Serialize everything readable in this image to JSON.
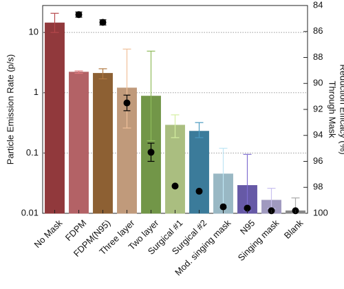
{
  "chart_data": {
    "type": "bar",
    "categories": [
      "No Mask",
      "FDPM",
      "FDPM(N95)",
      "Three layer",
      "Two layer",
      "Surgical #1",
      "Surgical #2",
      "Mod. singing mask",
      "N95",
      "Singing mask",
      "Blank"
    ],
    "ylabel": "Particle Emission Rate (p/s)",
    "y2label": [
      "Through Mask",
      "Reduction Efficacy (%)"
    ],
    "log_y": true,
    "grid": true,
    "ylim": [
      0.01,
      28
    ],
    "yticks": [
      0.01,
      0.1,
      1,
      10
    ],
    "y2lim": [
      84,
      100
    ],
    "y2ticks": [
      84,
      86,
      88,
      90,
      92,
      94,
      96,
      98,
      100
    ],
    "series": [
      {
        "type": "bar",
        "colors": [
          "#b5474b",
          "#e07a7f",
          "#b07840",
          "#f0c09a",
          "#8fbb5a",
          "#d4eea0",
          "#4a9ac0",
          "#bfe6f5",
          "#7f6fd0",
          "#c8c0ef",
          "#a9a9a9"
        ],
        "values": [
          14.4,
          2.2,
          2.1,
          1.2,
          0.88,
          0.29,
          0.23,
          0.045,
          0.029,
          0.0165,
          0.011
        ],
        "err_low": [
          10,
          2.1,
          1.7,
          0.26,
          0.16,
          0.18,
          0.18,
          0.013,
          0.011,
          0.012,
          0.01
        ],
        "err_high": [
          20.8,
          2.3,
          2.5,
          5.3,
          4.9,
          0.43,
          0.32,
          0.12,
          0.095,
          0.026,
          0.018
        ]
      },
      {
        "type": "scatter",
        "axis": "y2",
        "color": "#000000",
        "values": [
          null,
          84.7,
          85.3,
          91.5,
          95.3,
          97.9,
          98.3,
          99.5,
          99.6,
          99.8,
          99.8
        ],
        "err": [
          null,
          0.2,
          0.2,
          0.6,
          0.7,
          null,
          null,
          null,
          null,
          null,
          null
        ]
      }
    ]
  }
}
